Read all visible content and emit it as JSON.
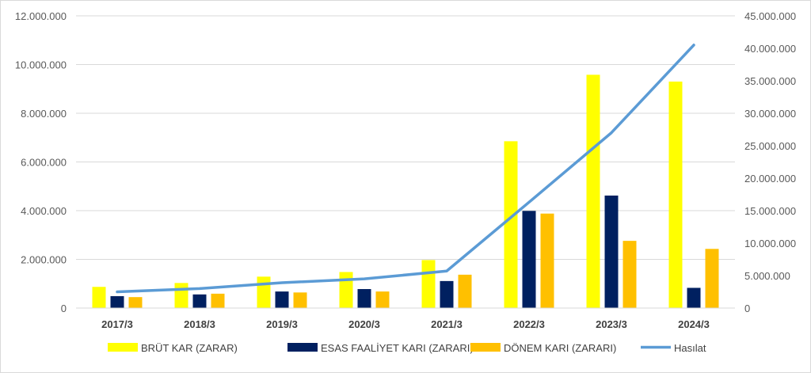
{
  "chart_data": {
    "type": "bar",
    "categories": [
      "2017/3",
      "2018/3",
      "2019/3",
      "2020/3",
      "2021/3",
      "2022/3",
      "2023/3",
      "2024/3"
    ],
    "series": [
      {
        "name": "BRÜT KAR (ZARAR)",
        "type": "bar",
        "axis": "left",
        "color": "#ffff00",
        "values": [
          870000,
          1030000,
          1290000,
          1480000,
          1970000,
          6850000,
          9580000,
          9300000
        ]
      },
      {
        "name": "ESAS FAALİYET KARI (ZARARI)",
        "type": "bar",
        "axis": "left",
        "color": "#002060",
        "values": [
          490000,
          560000,
          680000,
          780000,
          1110000,
          3990000,
          4620000,
          830000
        ]
      },
      {
        "name": "DÖNEM KARI (ZARARI)",
        "type": "bar",
        "axis": "left",
        "color": "#ffc000",
        "values": [
          450000,
          590000,
          640000,
          680000,
          1370000,
          3880000,
          2760000,
          2430000
        ]
      },
      {
        "name": "Hasılat",
        "type": "line",
        "axis": "right",
        "color": "#5b9bd5",
        "values": [
          2500000,
          3000000,
          3900000,
          4500000,
          5700000,
          16300000,
          27000000,
          40500000
        ]
      }
    ],
    "ylim": [
      0,
      12000000
    ],
    "y2lim": [
      0,
      45000000
    ],
    "yticks": [
      "0",
      "2.000.000",
      "4.000.000",
      "6.000.000",
      "8.000.000",
      "10.000.000",
      "12.000.000"
    ],
    "y2ticks": [
      "0",
      "5.000.000",
      "10.000.000",
      "15.000.000",
      "20.000.000",
      "25.000.000",
      "30.000.000",
      "35.000.000",
      "40.000.000",
      "45.000.000"
    ],
    "grid": true,
    "legend": "bottom"
  }
}
